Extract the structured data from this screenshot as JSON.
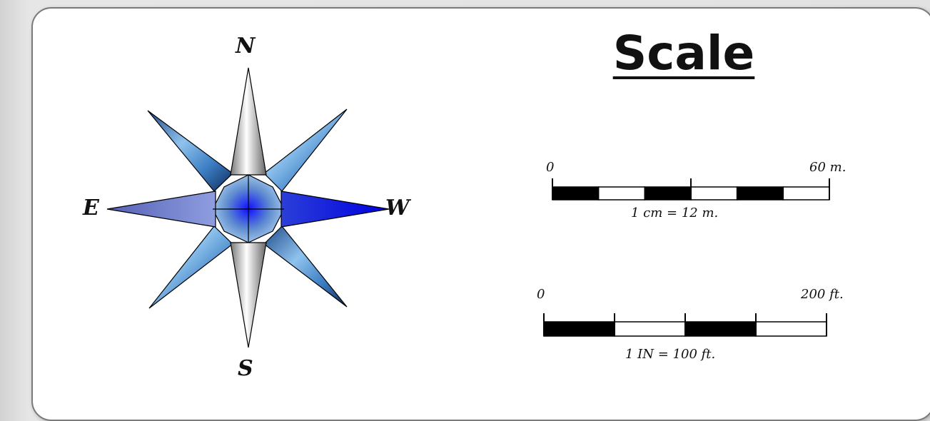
{
  "compass": {
    "north": "N",
    "south": "S",
    "east": "E",
    "west": "W",
    "colors": {
      "cardinal_ns": "#d8d8d8",
      "cardinal_ew": "#3a5cc8",
      "diagonal": "#5b9bd5",
      "outline": "#000000"
    }
  },
  "scale": {
    "title": "Scale",
    "metric": {
      "start_label": "0",
      "end_label": "60 m.",
      "ratio_label": "1 cm = 12 m.",
      "segments": 6
    },
    "imperial": {
      "start_label": "0",
      "end_label": "200 ft.",
      "ratio_label": "1 IN = 100 ft.",
      "segments": 4
    }
  }
}
